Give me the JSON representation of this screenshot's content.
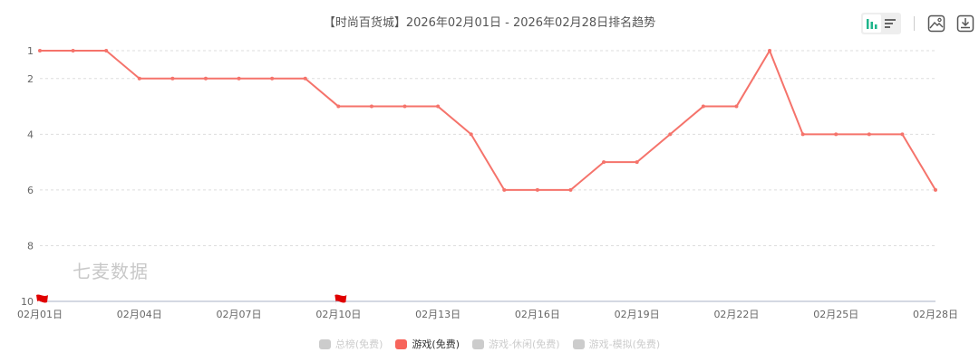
{
  "title": "【时尚百货城】2026年02月01日 - 2026年02月28日排名趋势",
  "toolbar": {
    "icons": [
      "bar-chart-icon",
      "list-icon",
      "image-icon",
      "download-icon"
    ]
  },
  "watermark": "七麦数据",
  "legend": [
    {
      "label": "总榜(免费)",
      "active": false
    },
    {
      "label": "游戏(免费)",
      "active": true,
      "color": "#f7655c"
    },
    {
      "label": "游戏-休闲(免费)",
      "active": false
    },
    {
      "label": "游戏-模拟(免费)",
      "active": false
    }
  ],
  "chart_data": {
    "type": "line",
    "title": "【时尚百货城】2026年02月01日 - 2026年02月28日排名趋势",
    "x": [
      "02月01日",
      "02月02日",
      "02月03日",
      "02月04日",
      "02月05日",
      "02月06日",
      "02月07日",
      "02月08日",
      "02月09日",
      "02月10日",
      "02月11日",
      "02月12日",
      "02月13日",
      "02月14日",
      "02月15日",
      "02月16日",
      "02月17日",
      "02月18日",
      "02月19日",
      "02月20日",
      "02月21日",
      "02月22日",
      "02月23日",
      "02月24日",
      "02月25日",
      "02月26日",
      "02月27日",
      "02月28日"
    ],
    "xticks": [
      "02月01日",
      "02月04日",
      "02月07日",
      "02月10日",
      "02月13日",
      "02月16日",
      "02月19日",
      "02月22日",
      "02月25日",
      "02月28日"
    ],
    "series": [
      {
        "name": "游戏(免费)",
        "color": "#f5736b",
        "values": [
          1,
          1,
          1,
          2,
          2,
          2,
          2,
          2,
          2,
          3,
          3,
          3,
          3,
          4,
          6,
          6,
          6,
          5,
          5,
          4,
          3,
          3,
          1,
          4,
          4,
          4,
          4,
          6
        ]
      }
    ],
    "yticks": [
      1,
      2,
      4,
      6,
      8,
      10
    ],
    "ylim": [
      1,
      10
    ],
    "y_inverted": true,
    "grid": true,
    "flags": [
      "02月01日",
      "02月10日"
    ],
    "flag_color": "#e00000",
    "legend_position": "bottom"
  }
}
